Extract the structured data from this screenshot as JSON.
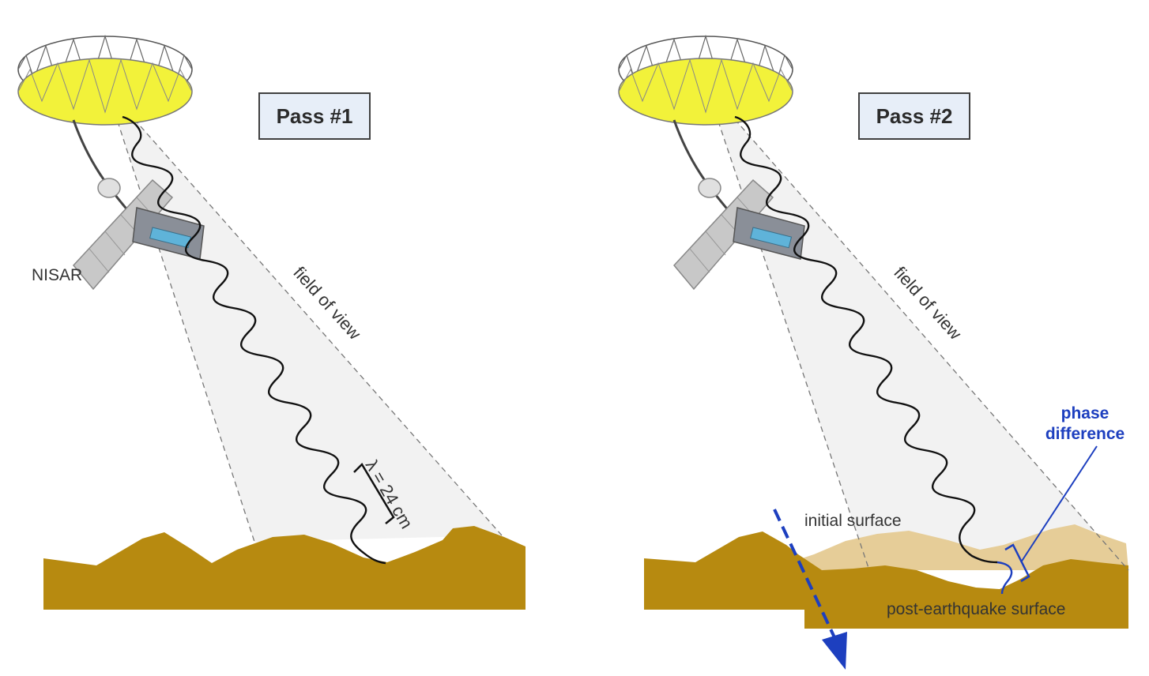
{
  "panels": [
    {
      "pass_label": "Pass #1",
      "fov_label": "field of view",
      "satellite_label": "NISAR",
      "wavelength_label": "λ = 24 cm"
    },
    {
      "pass_label": "Pass #2",
      "fov_label": "field of view",
      "initial_surface_label": "initial surface",
      "post_surface_label": "post-earthquake surface",
      "phase_difference_line1": "phase",
      "phase_difference_line2": "difference"
    }
  ],
  "colors": {
    "ground": "#b78a10",
    "initial_surface": "#e6cd98",
    "antenna": "#f2f23a",
    "beam": "#f2f2f2",
    "accent_blue": "#1d3fbf"
  }
}
